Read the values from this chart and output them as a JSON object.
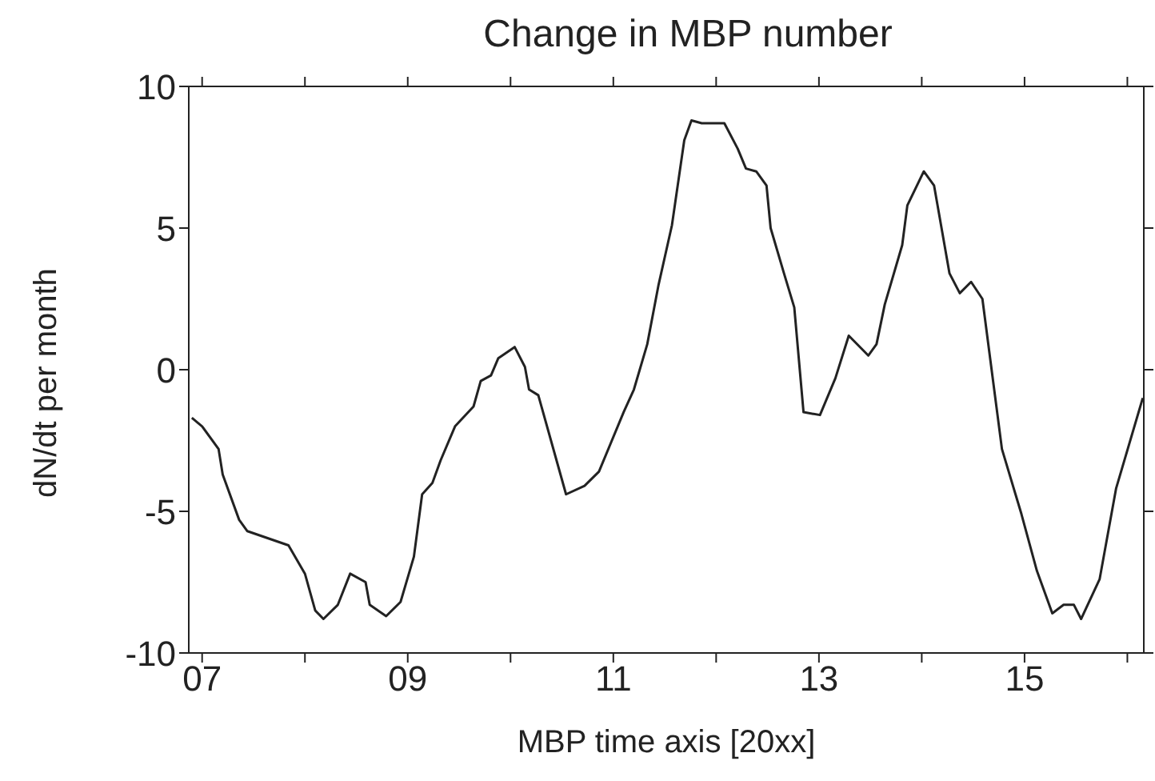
{
  "chart_data": {
    "type": "line",
    "title": "Change in MBP number",
    "xlabel": "MBP time axis [20xx]",
    "ylabel": "dN/dt per month",
    "xlim": [
      2006.87,
      2016.16
    ],
    "ylim": [
      -10,
      10
    ],
    "xticks": [
      {
        "value": 2007,
        "label": "07"
      },
      {
        "value": 2008,
        "label": null
      },
      {
        "value": 2009,
        "label": "09"
      },
      {
        "value": 2010,
        "label": null
      },
      {
        "value": 2011,
        "label": "11"
      },
      {
        "value": 2012,
        "label": null
      },
      {
        "value": 2013,
        "label": "13"
      },
      {
        "value": 2014,
        "label": null
      },
      {
        "value": 2015,
        "label": "15"
      },
      {
        "value": 2016,
        "label": null
      }
    ],
    "yticks": [
      -10,
      -5,
      0,
      5,
      10
    ],
    "grid": false,
    "legend": false,
    "marker": "none",
    "line_style": "solid",
    "series": [
      {
        "color": "#222222",
        "x": [
          2006.9,
          2007.0,
          2007.16,
          2007.2,
          2007.36,
          2007.44,
          2007.84,
          2008.0,
          2008.1,
          2008.18,
          2008.32,
          2008.44,
          2008.59,
          2008.63,
          2008.79,
          2008.93,
          2009.06,
          2009.14,
          2009.24,
          2009.32,
          2009.46,
          2009.64,
          2009.71,
          2009.81,
          2009.88,
          2010.04,
          2010.14,
          2010.18,
          2010.27,
          2010.54,
          2010.72,
          2010.86,
          2011.1,
          2011.2,
          2011.33,
          2011.44,
          2011.57,
          2011.69,
          2011.76,
          2011.86,
          2012.08,
          2012.21,
          2012.29,
          2012.39,
          2012.49,
          2012.53,
          2012.66,
          2012.76,
          2012.85,
          2013.01,
          2013.16,
          2013.29,
          2013.48,
          2013.56,
          2013.64,
          2013.81,
          2013.86,
          2014.02,
          2014.12,
          2014.27,
          2014.37,
          2014.48,
          2014.59,
          2014.78,
          2014.97,
          2015.12,
          2015.27,
          2015.38,
          2015.48,
          2015.55,
          2015.73,
          2015.89,
          2016.15
        ],
        "values": [
          -1.7,
          -2.0,
          -2.8,
          -3.7,
          -5.3,
          -5.7,
          -6.2,
          -7.2,
          -8.5,
          -8.8,
          -8.3,
          -7.2,
          -7.5,
          -8.3,
          -8.7,
          -8.2,
          -6.6,
          -4.4,
          -4.0,
          -3.2,
          -2.0,
          -1.3,
          -0.4,
          -0.2,
          0.4,
          0.8,
          0.1,
          -0.7,
          -0.9,
          -4.4,
          -4.1,
          -3.6,
          -1.5,
          -0.7,
          0.9,
          3.0,
          5.1,
          8.1,
          8.8,
          8.7,
          8.7,
          7.8,
          7.1,
          7.0,
          6.5,
          5.0,
          3.4,
          2.2,
          -1.5,
          -1.6,
          -0.3,
          1.2,
          0.5,
          0.9,
          2.3,
          4.4,
          5.8,
          7.0,
          6.5,
          3.4,
          2.7,
          3.1,
          2.5,
          -2.8,
          -5.1,
          -7.1,
          -8.6,
          -8.3,
          -8.3,
          -8.8,
          -7.4,
          -4.2,
          -1.0
        ]
      }
    ]
  }
}
